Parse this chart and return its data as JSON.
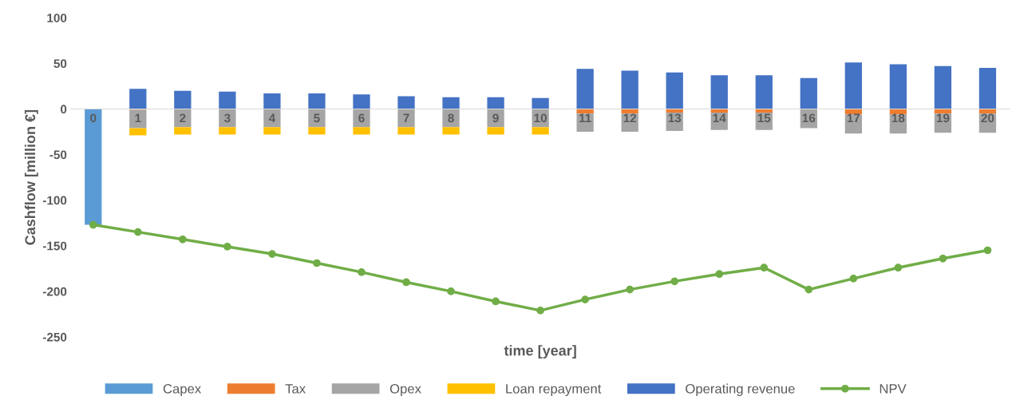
{
  "chart_data": {
    "type": "bar",
    "stacked": true,
    "xlabel": "time [year]",
    "ylabel": "Cashflow [million €]",
    "categories": [
      "0",
      "1",
      "2",
      "3",
      "4",
      "5",
      "6",
      "7",
      "8",
      "9",
      "10",
      "11",
      "12",
      "13",
      "14",
      "15",
      "16",
      "17",
      "18",
      "19",
      "20"
    ],
    "series": [
      {
        "name": "Capex",
        "color": "#5b9bd5",
        "values": [
          -127,
          null,
          null,
          null,
          null,
          null,
          null,
          null,
          null,
          null,
          null,
          null,
          null,
          null,
          null,
          null,
          null,
          null,
          null,
          null,
          null
        ]
      },
      {
        "name": "Tax",
        "color": "#ed7d31",
        "values": [
          null,
          -1,
          null,
          null,
          null,
          null,
          null,
          null,
          null,
          null,
          null,
          -5,
          -5,
          -4,
          -4,
          -4,
          null,
          -6,
          -6,
          -5,
          -5
        ]
      },
      {
        "name": "Opex",
        "color": "#a5a5a5",
        "values": [
          null,
          -20,
          -20,
          -20,
          -20,
          -20,
          -20,
          -20,
          -20,
          -20,
          -20,
          -20,
          -20,
          -20,
          -19,
          -19,
          -21,
          -21,
          -21,
          -21,
          -21
        ]
      },
      {
        "name": "Loan repayment",
        "color": "#ffc000",
        "values": [
          null,
          -8,
          -8,
          -8,
          -8,
          -8,
          -8,
          -8,
          -8,
          -8,
          -8,
          null,
          null,
          null,
          null,
          null,
          null,
          null,
          null,
          null,
          null
        ]
      },
      {
        "name": "Operating revenue",
        "color": "#4472c4",
        "values": [
          null,
          22,
          20,
          19,
          17,
          17,
          16,
          14,
          13,
          13,
          12,
          44,
          42,
          40,
          37,
          37,
          34,
          51,
          49,
          47,
          45
        ]
      },
      {
        "name": "NPV",
        "type": "line",
        "color": "#70ad47",
        "marker": "circle",
        "values": [
          -127,
          -135,
          -143,
          -151,
          -159,
          -169,
          -179,
          -190,
          -200,
          -211,
          -221,
          -209,
          -198,
          -189,
          -181,
          -174,
          -198,
          -186,
          -174,
          -164,
          -155
        ]
      }
    ],
    "ylim": [
      -250,
      100
    ],
    "yticks": [
      -250,
      -200,
      -150,
      -100,
      -50,
      0,
      50,
      100
    ],
    "grid": false,
    "legend": "bottom"
  }
}
